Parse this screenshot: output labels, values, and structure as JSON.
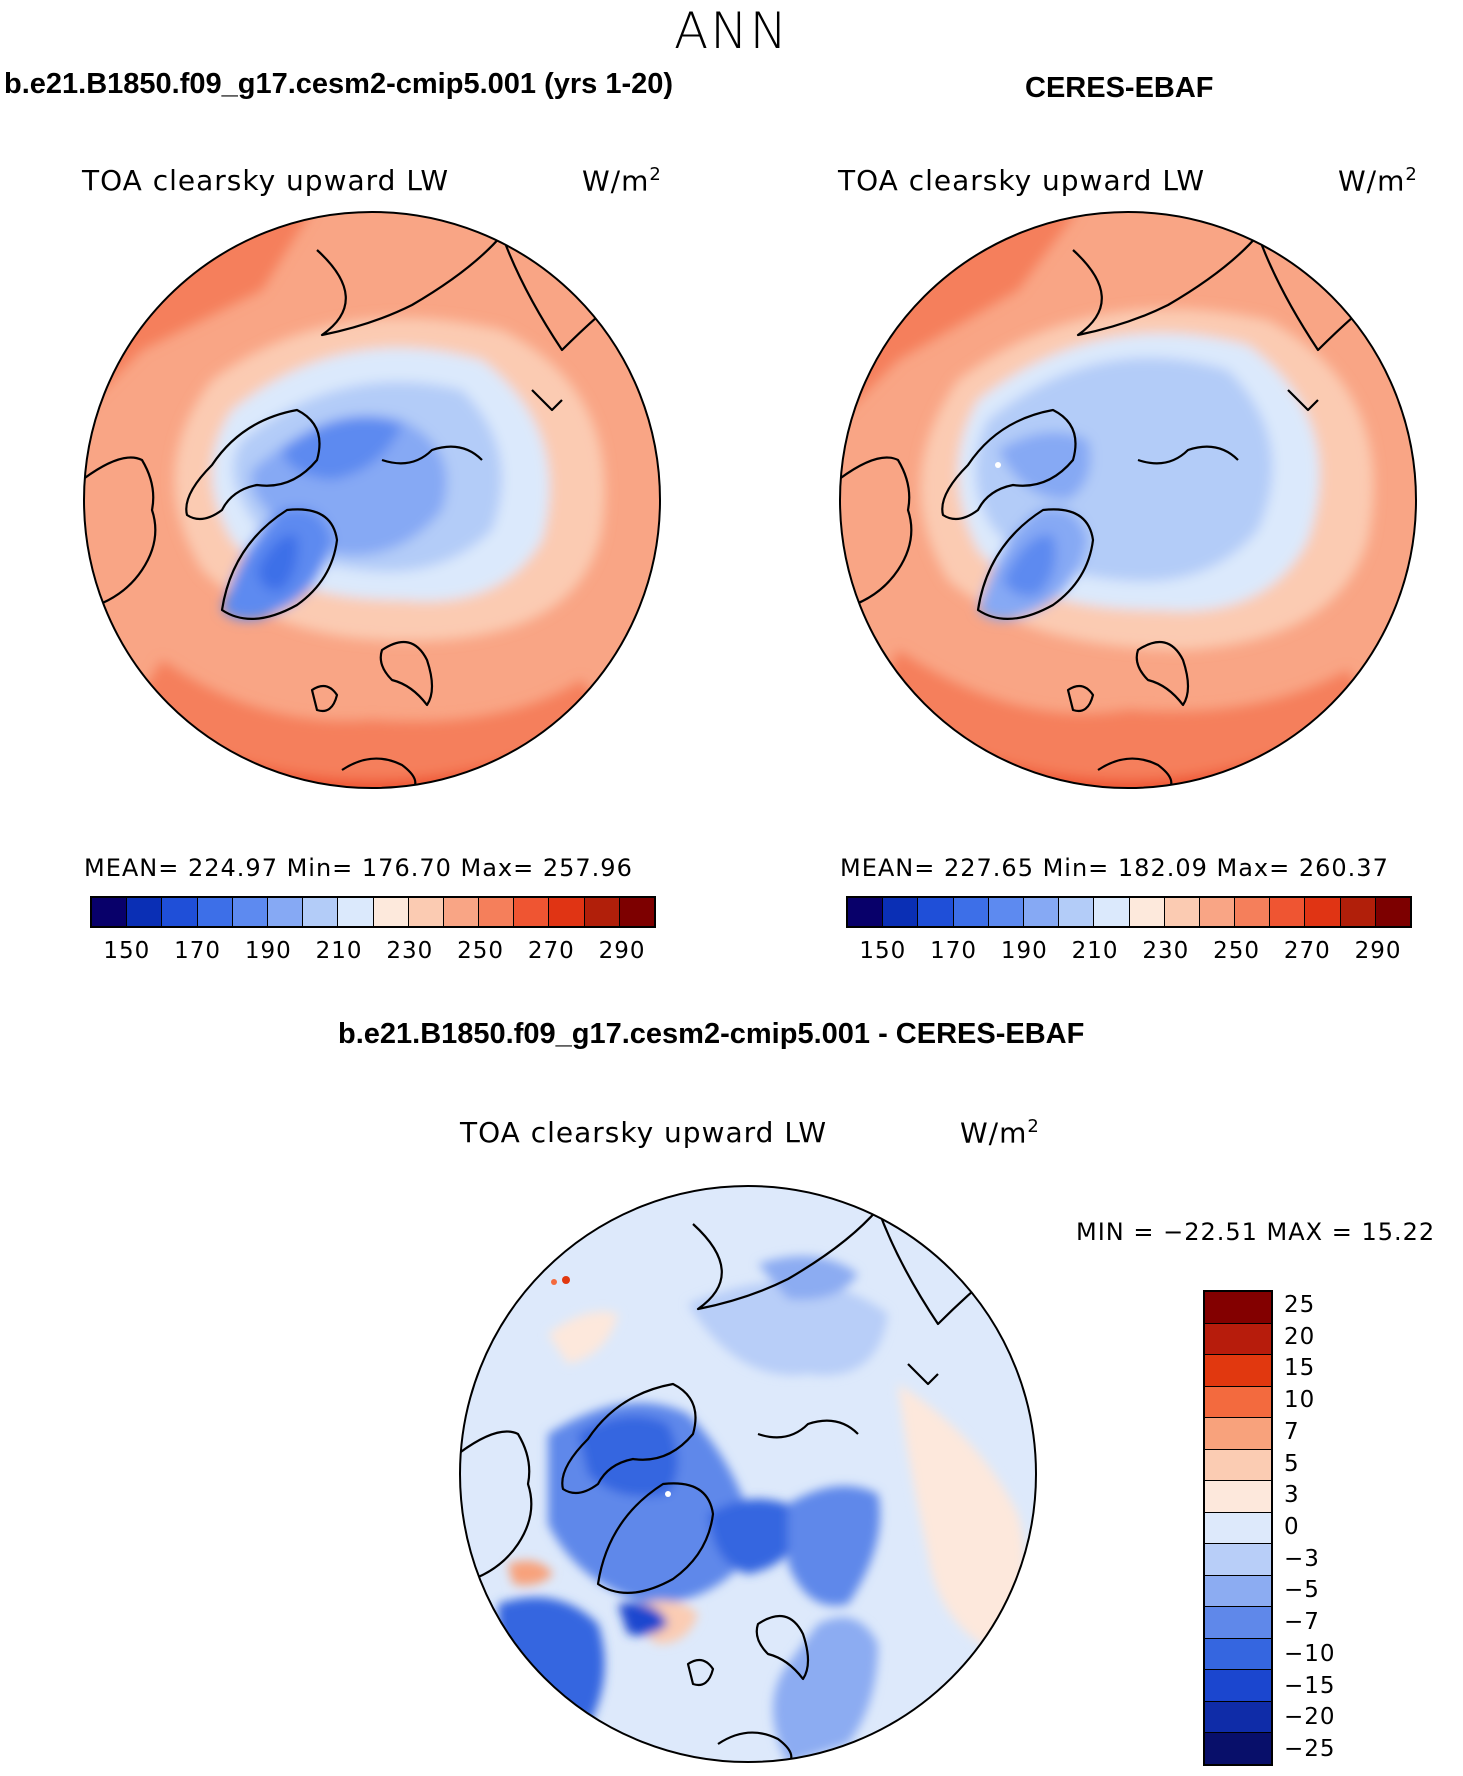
{
  "season": "ANN",
  "panels": {
    "model": {
      "case_title": "b.e21.B1850.f09_g17.cesm2-cmip5.001 (yrs 1-20)",
      "var_title": "TOA clearsky upward LW",
      "units_base": "W/m",
      "units_exp": "2",
      "stats": "MEAN= 224.97   Min= 176.70   Max= 257.96",
      "colorbar_ticks": [
        "150",
        "170",
        "190",
        "210",
        "230",
        "250",
        "270",
        "290"
      ]
    },
    "obs": {
      "case_title": "CERES-EBAF",
      "var_title": "TOA clearsky upward LW",
      "units_base": "W/m",
      "units_exp": "2",
      "stats": "MEAN= 227.65   Min= 182.09   Max= 260.37",
      "colorbar_ticks": [
        "150",
        "170",
        "190",
        "210",
        "230",
        "250",
        "270",
        "290"
      ]
    },
    "diff": {
      "case_title": "b.e21.B1850.f09_g17.cesm2-cmip5.001 - CERES-EBAF",
      "var_title": "TOA clearsky upward LW",
      "units_base": "W/m",
      "units_exp": "2",
      "stats": "MIN = −22.51 MAX =   15.22",
      "colorbar_ticks": [
        "25",
        "20",
        "15",
        "10",
        "7",
        "5",
        "3",
        "0",
        "−3",
        "−5",
        "−7",
        "−10",
        "−15",
        "−20",
        "−25"
      ]
    }
  },
  "colors": {
    "abs_levels": [
      "#08006a",
      "#0a2fb5",
      "#1f4fd8",
      "#3d6fe8",
      "#5d8af0",
      "#86a9f4",
      "#b3ccf8",
      "#dbe9fc",
      "#fde9dc",
      "#fbcbb2",
      "#f9a585",
      "#f57f5b",
      "#ef5532",
      "#e03414",
      "#b11f0a",
      "#7d0000"
    ],
    "diff_levels": [
      "#830000",
      "#b71c0c",
      "#e1380f",
      "#f36a3e",
      "#f8a27c",
      "#fbccb3",
      "#fde8dc",
      "#dde9fb",
      "#b8cef8",
      "#8cacf2",
      "#5f88ea",
      "#3566e0",
      "#1b46cf",
      "#0f2ca8",
      "#080f6a"
    ]
  }
}
